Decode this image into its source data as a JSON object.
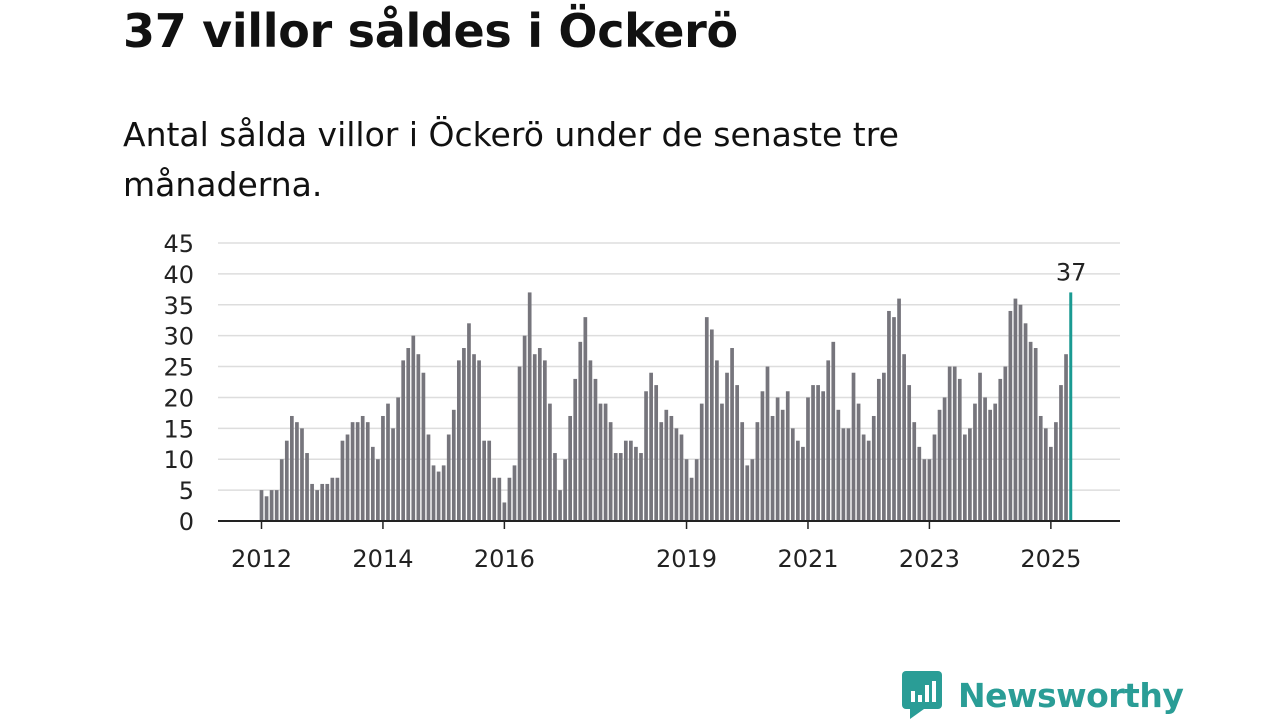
{
  "header": {
    "title": "37 villor såldes i Öckerö",
    "subtitle": "Antal sålda villor i Öckerö under de senaste tre månaderna."
  },
  "brand": {
    "name": "Newsworthy"
  },
  "colors": {
    "bar": "#76757c",
    "highlight": "#1a9a92",
    "grid": "#dddddd",
    "axis": "#222222",
    "brand": "#2a9d96"
  },
  "chart_data": {
    "type": "bar",
    "title": "37 villor såldes i Öckerö",
    "subtitle": "Antal sålda villor i Öckerö under de senaste tre månaderna.",
    "xlabel": "",
    "ylabel": "",
    "ylim": [
      0,
      45
    ],
    "yticks": [
      0,
      5,
      10,
      15,
      20,
      25,
      30,
      35,
      40,
      45
    ],
    "grid": true,
    "start": "2012-01",
    "xtick_labels": [
      "2012",
      "2014",
      "2016",
      "2019",
      "2021",
      "2023",
      "2025"
    ],
    "highlight_label": "37",
    "values": [
      5,
      4,
      5,
      5,
      10,
      13,
      17,
      16,
      15,
      11,
      6,
      5,
      6,
      6,
      7,
      7,
      13,
      14,
      16,
      16,
      17,
      16,
      12,
      10,
      17,
      19,
      15,
      20,
      26,
      28,
      30,
      27,
      24,
      14,
      9,
      8,
      9,
      14,
      18,
      26,
      28,
      32,
      27,
      26,
      13,
      13,
      7,
      7,
      3,
      7,
      9,
      25,
      30,
      37,
      27,
      28,
      26,
      19,
      11,
      5,
      10,
      17,
      23,
      29,
      33,
      26,
      23,
      19,
      19,
      16,
      11,
      11,
      13,
      13,
      12,
      11,
      21,
      24,
      22,
      16,
      18,
      17,
      15,
      14,
      10,
      7,
      10,
      19,
      33,
      31,
      26,
      19,
      24,
      28,
      22,
      16,
      9,
      10,
      16,
      21,
      25,
      17,
      20,
      18,
      21,
      15,
      13,
      12,
      20,
      22,
      22,
      21,
      26,
      29,
      18,
      15,
      15,
      24,
      19,
      14,
      13,
      17,
      23,
      24,
      34,
      33,
      36,
      27,
      22,
      16,
      12,
      10,
      10,
      14,
      18,
      20,
      25,
      25,
      23,
      14,
      15,
      19,
      24,
      20,
      18,
      19,
      23,
      25,
      34,
      36,
      35,
      32,
      29,
      28,
      17,
      15,
      12,
      16,
      22,
      27,
      37
    ]
  }
}
